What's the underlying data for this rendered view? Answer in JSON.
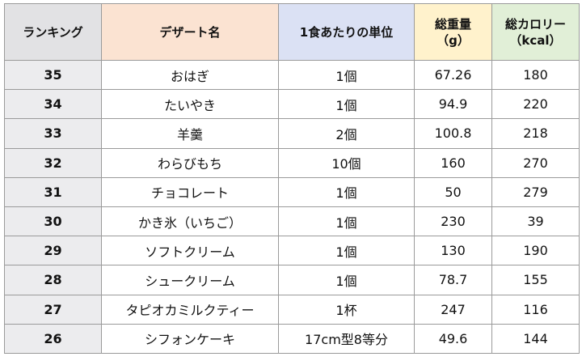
{
  "colors": {
    "header_rank": "#e2e2e4",
    "header_name": "#fbe3d2",
    "header_unit": "#dbe1f4",
    "header_weight": "#fff2cc",
    "header_calorie": "#e1efd7",
    "rank_cell": "#ececee",
    "border": "#9a9a9a"
  },
  "headers": {
    "rank": "ランキング",
    "name": "デザート名",
    "unit": "1食あたりの単位",
    "weight_line1": "総重量",
    "weight_line2": "（g）",
    "calorie_line1": "総カロリー",
    "calorie_line2": "（kcal）"
  },
  "rows": [
    {
      "rank": "35",
      "name": "おはぎ",
      "unit": "1個",
      "weight": "67.26",
      "calorie": "180"
    },
    {
      "rank": "34",
      "name": "たいやき",
      "unit": "1個",
      "weight": "94.9",
      "calorie": "220"
    },
    {
      "rank": "33",
      "name": "羊羹",
      "unit": "2個",
      "weight": "100.8",
      "calorie": "218"
    },
    {
      "rank": "32",
      "name": "わらびもち",
      "unit": "10個",
      "weight": "160",
      "calorie": "270"
    },
    {
      "rank": "31",
      "name": "チョコレート",
      "unit": "1個",
      "weight": "50",
      "calorie": "279"
    },
    {
      "rank": "30",
      "name": "かき氷（いちご）",
      "unit": "1個",
      "weight": "230",
      "calorie": "39"
    },
    {
      "rank": "29",
      "name": "ソフトクリーム",
      "unit": "1個",
      "weight": "130",
      "calorie": "190"
    },
    {
      "rank": "28",
      "name": "シュークリーム",
      "unit": "1個",
      "weight": "78.7",
      "calorie": "155"
    },
    {
      "rank": "27",
      "name": "タピオカミルクティー",
      "unit": "1杯",
      "weight": "247",
      "calorie": "116"
    },
    {
      "rank": "26",
      "name": "シフォンケーキ",
      "unit": "17cm型8等分",
      "weight": "49.6",
      "calorie": "144"
    }
  ]
}
